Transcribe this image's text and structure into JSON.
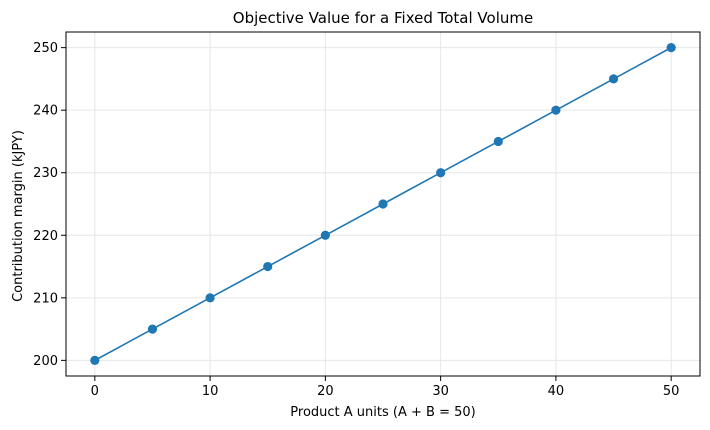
{
  "chart_data": {
    "type": "line",
    "title": "Objective Value for a Fixed Total Volume",
    "xlabel": "Product A units (A + B = 50)",
    "ylabel": "Contribution margin (kJPY)",
    "xlim": [
      -2.5,
      52.5
    ],
    "ylim": [
      197.5,
      252.5
    ],
    "xticks": [
      0,
      10,
      20,
      30,
      40,
      50
    ],
    "yticks": [
      200,
      210,
      220,
      230,
      240,
      250
    ],
    "grid": true,
    "color": "#1f77b4",
    "series": [
      {
        "x": [
          0,
          5,
          10,
          15,
          20,
          25,
          30,
          35,
          40,
          45,
          50
        ],
        "y": [
          200,
          205,
          210,
          215,
          220,
          225,
          230,
          235,
          240,
          245,
          250
        ],
        "marker": "circle"
      }
    ]
  }
}
